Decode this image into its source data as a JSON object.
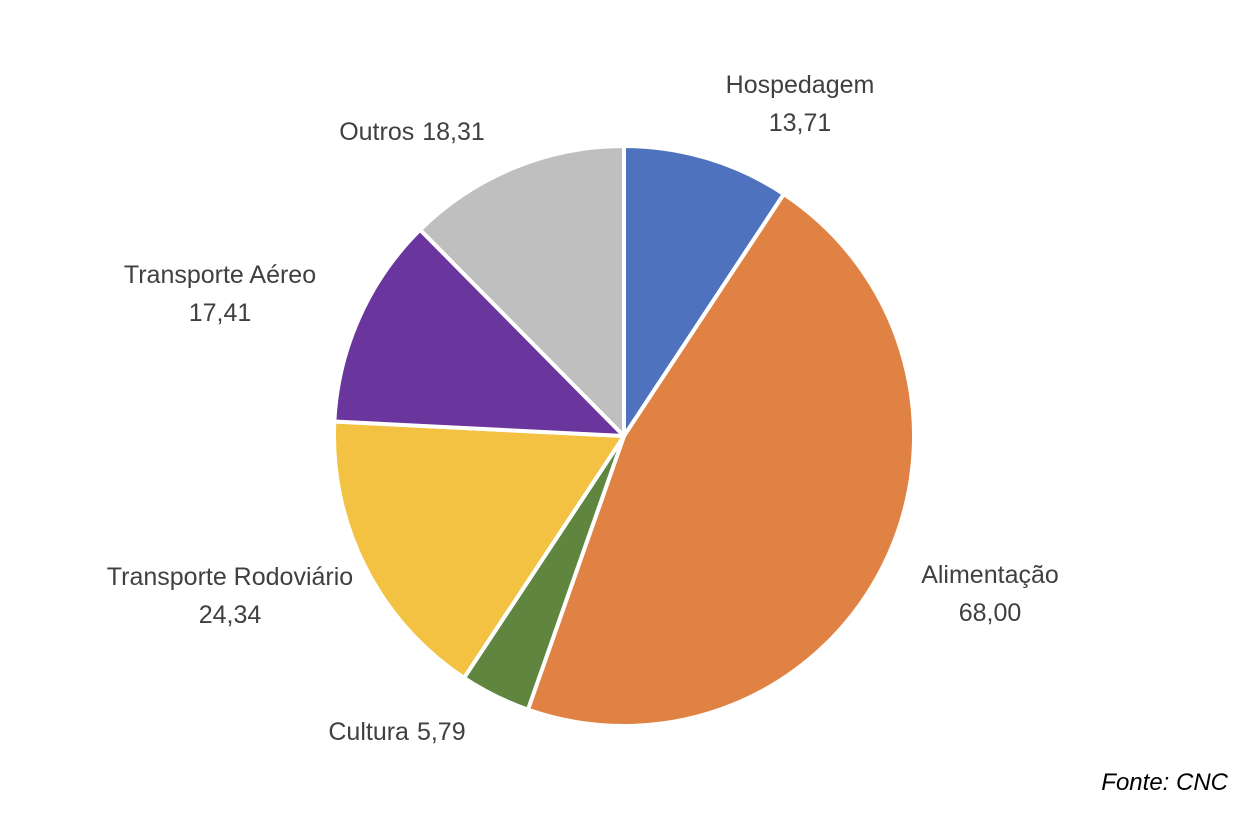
{
  "chart_data": {
    "type": "pie",
    "categories": [
      "Hospedagem",
      "Alimentação",
      "Cultura",
      "Transporte Rodoviário",
      "Transporte Aéreo",
      "Outros"
    ],
    "values": [
      13.71,
      68.0,
      5.79,
      24.34,
      17.41,
      18.31
    ],
    "value_labels": [
      "13,71",
      "68,00",
      "5,79",
      "24,34",
      "17,41",
      "18,31"
    ],
    "colors": [
      "#4e72be",
      "#df8244",
      "#5f853e",
      "#f3c242",
      "#6a359c",
      "#bfbfbf"
    ],
    "source": "Fonte: CNC"
  }
}
